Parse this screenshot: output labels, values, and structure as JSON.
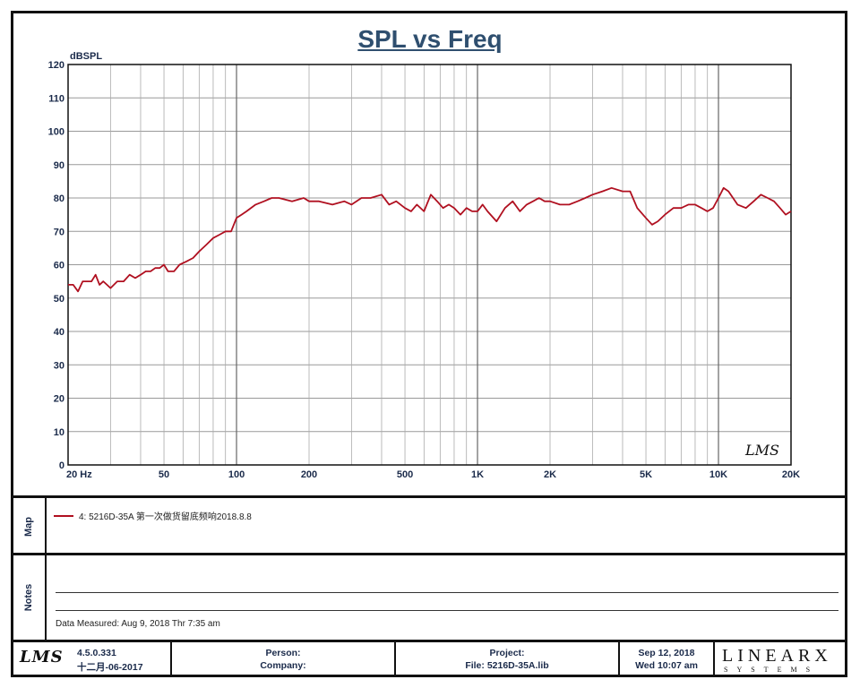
{
  "chart_data": {
    "type": "line",
    "title": "SPL vs Freq",
    "ylabel": "dBSPL",
    "xlabel": "",
    "x_scale": "log",
    "xlim": [
      20,
      20000
    ],
    "ylim": [
      0,
      120
    ],
    "yticks": [
      0,
      10,
      20,
      30,
      40,
      50,
      60,
      70,
      80,
      90,
      100,
      110,
      120
    ],
    "xtick_values": [
      20,
      50,
      100,
      200,
      500,
      1000,
      2000,
      5000,
      10000,
      20000
    ],
    "xtick_labels": [
      "20  Hz",
      "50",
      "100",
      "200",
      "500",
      "1K",
      "2K",
      "5K",
      "10K",
      "20K"
    ],
    "grid": true,
    "series": [
      {
        "name": "4: 5216D-35A 第一次做货留底频响2018.8.8",
        "color": "#b01020",
        "x": [
          20,
          21,
          22,
          23,
          24,
          25,
          26,
          27,
          28,
          29,
          30,
          32,
          34,
          36,
          38,
          40,
          42,
          44,
          46,
          48,
          50,
          52,
          55,
          58,
          62,
          66,
          70,
          75,
          80,
          85,
          90,
          95,
          100,
          105,
          110,
          120,
          130,
          140,
          150,
          170,
          190,
          200,
          220,
          250,
          280,
          300,
          330,
          360,
          400,
          430,
          460,
          500,
          530,
          560,
          600,
          640,
          680,
          720,
          760,
          800,
          850,
          900,
          950,
          1000,
          1050,
          1100,
          1200,
          1300,
          1400,
          1500,
          1600,
          1700,
          1800,
          1900,
          2000,
          2200,
          2400,
          2600,
          2800,
          3000,
          3300,
          3600,
          4000,
          4300,
          4600,
          5000,
          5300,
          5600,
          6000,
          6500,
          7000,
          7500,
          8000,
          8500,
          9000,
          9500,
          10000,
          10500,
          11000,
          12000,
          13000,
          14000,
          15000,
          16000,
          17000,
          18000,
          19000,
          20000
        ],
        "values": [
          54,
          54,
          52,
          55,
          55,
          55,
          57,
          54,
          55,
          54,
          53,
          55,
          55,
          57,
          56,
          57,
          58,
          58,
          59,
          59,
          60,
          58,
          58,
          60,
          61,
          62,
          64,
          66,
          68,
          69,
          70,
          70,
          74,
          75,
          76,
          78,
          79,
          80,
          80,
          79,
          80,
          79,
          79,
          78,
          79,
          78,
          80,
          80,
          81,
          78,
          79,
          77,
          76,
          78,
          76,
          81,
          79,
          77,
          78,
          77,
          75,
          77,
          76,
          76,
          78,
          76,
          73,
          77,
          79,
          76,
          78,
          79,
          80,
          79,
          79,
          78,
          78,
          79,
          80,
          81,
          82,
          83,
          82,
          82,
          77,
          74,
          72,
          73,
          75,
          77,
          77,
          78,
          78,
          77,
          76,
          77,
          80,
          83,
          82,
          78,
          77,
          79,
          81,
          80,
          79,
          77,
          75,
          76
        ]
      }
    ]
  },
  "legend": {
    "entry": "4: 5216D-35A 第一次做货留底频响2018.8.8"
  },
  "map_label": "Map",
  "notes_label": "Notes",
  "notes": {
    "measured": "Data Measured: Aug  9, 2018  Thr  7:35 am"
  },
  "footer": {
    "logo": "LMS",
    "version": "4.5.0.331",
    "build_date": "十二月-06-2017",
    "person_label": "Person:",
    "company_label": "Company:",
    "project_label": "Project:",
    "file_label": "File: 5216D-35A.lib",
    "date": "Sep 12, 2018",
    "time": "Wed 10:07 am",
    "brand": "LINEARX",
    "brand_sub": "SYSTEMS"
  },
  "watermark": "LMS"
}
